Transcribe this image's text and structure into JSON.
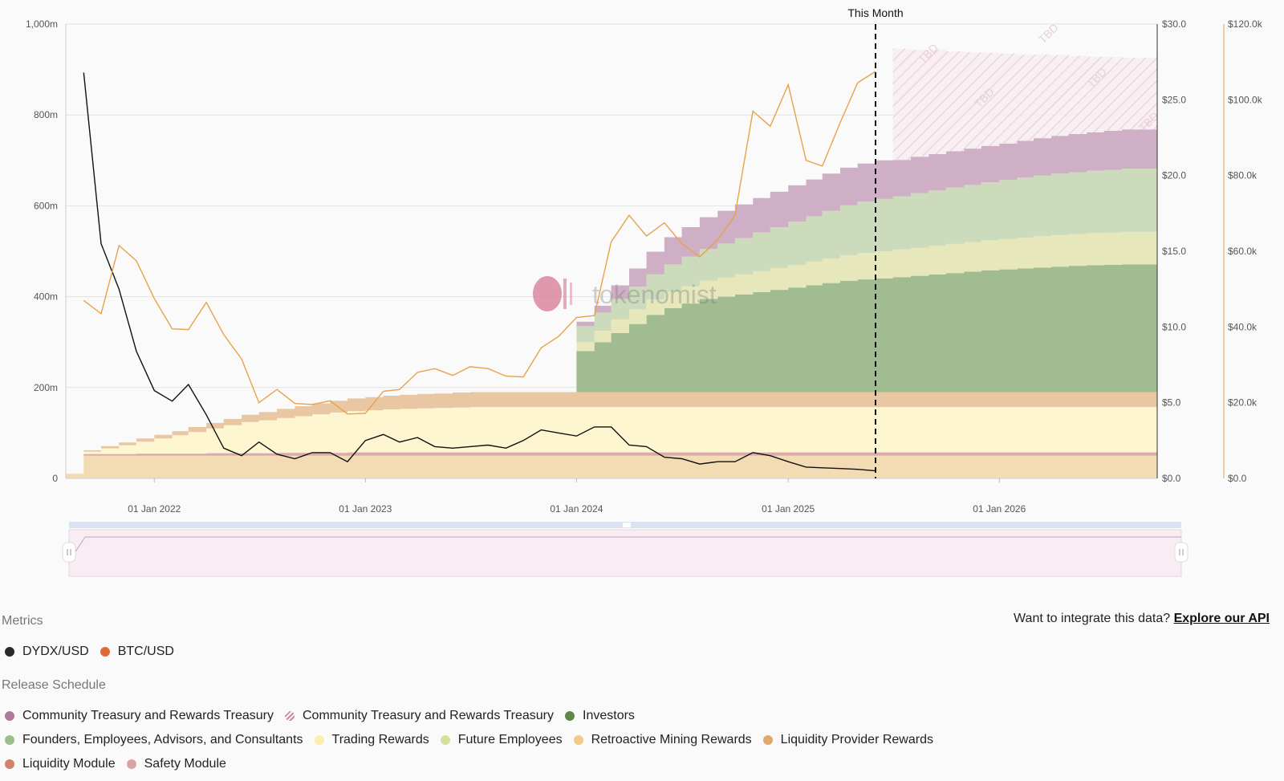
{
  "chart_data": {
    "type": "area",
    "xlim": [
      "2021-08-01",
      "2026-10-01"
    ],
    "x_ticks": [
      "01 Jan 2022",
      "01 Jan 2023",
      "01 Jan 2024",
      "01 Jan 2025",
      "01 Jan 2026"
    ],
    "marker": {
      "label": "This Month",
      "x": "2025-06-01"
    },
    "y_axes": {
      "supply": {
        "ylim": [
          0,
          1000
        ],
        "ticks": [
          "0",
          "200m",
          "400m",
          "600m",
          "800m",
          "1,000m"
        ]
      },
      "dydx_usd": {
        "ylim": [
          0,
          30
        ],
        "ticks": [
          "$0.0",
          "$5.0",
          "$10.0",
          "$15.0",
          "$20.0",
          "$25.0",
          "$30.0"
        ]
      },
      "btc_usd": {
        "ylim": [
          0,
          120000
        ],
        "ticks": [
          "$0.0",
          "$20.0k",
          "$40.0k",
          "$60.0k",
          "$80.0k",
          "$100.0k",
          "$120.0k"
        ]
      }
    },
    "stack_dates": [
      "2021-08-01",
      "2021-09-01",
      "2021-10-01",
      "2021-11-01",
      "2021-12-01",
      "2022-01-01",
      "2022-02-01",
      "2022-03-01",
      "2022-04-01",
      "2022-05-01",
      "2022-06-01",
      "2022-07-01",
      "2022-08-01",
      "2022-09-01",
      "2022-10-01",
      "2022-11-01",
      "2022-12-01",
      "2023-01-01",
      "2023-02-01",
      "2023-03-01",
      "2023-04-01",
      "2023-05-01",
      "2023-06-01",
      "2023-07-01",
      "2023-08-01",
      "2023-09-01",
      "2023-10-01",
      "2023-11-01",
      "2023-12-01",
      "2024-01-01",
      "2024-02-01",
      "2024-03-01",
      "2024-04-01",
      "2024-05-01",
      "2024-06-01",
      "2024-07-01",
      "2024-08-01",
      "2024-09-01",
      "2024-10-01",
      "2024-11-01",
      "2024-12-01",
      "2025-01-01",
      "2025-02-01",
      "2025-03-01",
      "2025-04-01",
      "2025-05-01",
      "2025-06-01",
      "2025-07-01",
      "2025-08-01",
      "2025-09-01",
      "2025-10-01",
      "2025-11-01",
      "2025-12-01",
      "2026-01-01",
      "2026-02-01",
      "2026-03-01",
      "2026-04-01",
      "2026-05-01",
      "2026-06-01",
      "2026-07-01",
      "2026-08-01",
      "2026-09-01"
    ],
    "series": [
      {
        "name": "Retroactive Mining Rewards",
        "color": "#f2d9b0",
        "values": [
          10,
          50,
          50,
          50,
          50,
          50,
          50,
          50,
          50,
          50,
          50,
          50,
          50,
          50,
          50,
          50,
          50,
          50,
          50,
          50,
          50,
          50,
          50,
          50,
          50,
          50,
          50,
          50,
          50,
          50,
          50,
          50,
          50,
          50,
          50,
          50,
          50,
          50,
          50,
          50,
          50,
          50,
          50,
          50,
          50,
          50,
          50,
          50,
          50,
          50,
          50,
          50,
          50,
          50,
          50,
          50,
          50,
          50,
          50,
          50,
          50,
          50
        ]
      },
      {
        "name": "Liquidity Module",
        "color": "#d9a6a6",
        "values": [
          0,
          3,
          3,
          3,
          4,
          4,
          4,
          4,
          5,
          5,
          5,
          5,
          6,
          6,
          6,
          6,
          7,
          7,
          7,
          7,
          7,
          7,
          7,
          7,
          7,
          7,
          7,
          7,
          7,
          7,
          7,
          7,
          7,
          7,
          7,
          7,
          7,
          7,
          7,
          7,
          7,
          7,
          7,
          7,
          7,
          7,
          7,
          7,
          7,
          7,
          7,
          7,
          7,
          7,
          7,
          7,
          7,
          7,
          7,
          7,
          7,
          7
        ]
      },
      {
        "name": "Safety Module",
        "color": "#e8c4c4",
        "values": [
          0,
          1,
          1,
          1,
          1,
          1,
          1,
          1,
          1,
          1,
          1,
          1,
          1,
          1,
          1,
          1,
          1,
          1,
          1,
          1,
          1,
          1,
          1,
          1,
          1,
          1,
          1,
          1,
          1,
          1,
          1,
          1,
          1,
          1,
          1,
          1,
          1,
          1,
          1,
          1,
          1,
          1,
          1,
          1,
          1,
          1,
          1,
          1,
          1,
          1,
          1,
          1,
          1,
          1,
          1,
          1,
          1,
          1,
          1,
          1,
          1,
          1
        ]
      },
      {
        "name": "Trading Rewards",
        "color": "#fdf6cf",
        "values": [
          0,
          5,
          12,
          19,
          26,
          33,
          40,
          47,
          54,
          61,
          68,
          72,
          76,
          80,
          84,
          88,
          90,
          92,
          94,
          95,
          96,
          97,
          98,
          99,
          99,
          99,
          99,
          99,
          99,
          99,
          99,
          99,
          99,
          99,
          99,
          99,
          99,
          99,
          99,
          99,
          99,
          99,
          99,
          99,
          99,
          99,
          99,
          99,
          99,
          99,
          99,
          99,
          99,
          99,
          99,
          99,
          99,
          99,
          99,
          99,
          99,
          99
        ]
      },
      {
        "name": "Liquidity Provider Rewards",
        "color": "#e9c49e",
        "values": [
          0,
          3,
          5,
          6,
          7,
          8,
          9,
          11,
          12,
          14,
          16,
          18,
          20,
          22,
          24,
          26,
          28,
          29,
          30,
          31,
          32,
          32,
          33,
          33,
          33,
          33,
          33,
          33,
          33,
          33,
          33,
          33,
          33,
          33,
          33,
          33,
          33,
          33,
          33,
          33,
          33,
          33,
          33,
          33,
          33,
          33,
          33,
          33,
          33,
          33,
          33,
          33,
          33,
          33,
          33,
          33,
          33,
          33,
          33,
          33,
          33,
          33
        ]
      },
      {
        "name": "Investors",
        "color": "#9cb88a",
        "values": [
          0,
          0,
          0,
          0,
          0,
          0,
          0,
          0,
          0,
          0,
          0,
          0,
          0,
          0,
          0,
          0,
          0,
          0,
          0,
          0,
          0,
          0,
          0,
          0,
          0,
          0,
          0,
          0,
          0,
          90,
          110,
          130,
          150,
          170,
          185,
          195,
          205,
          210,
          215,
          220,
          225,
          230,
          235,
          240,
          245,
          248,
          250,
          253,
          256,
          259,
          262,
          265,
          268,
          270,
          272,
          274,
          276,
          278,
          279,
          280,
          281,
          281
        ]
      },
      {
        "name": "Future Employees",
        "color": "#e6e6b8",
        "values": [
          0,
          0,
          0,
          0,
          0,
          0,
          0,
          0,
          0,
          0,
          0,
          0,
          0,
          0,
          0,
          0,
          0,
          0,
          0,
          0,
          0,
          0,
          0,
          0,
          0,
          0,
          0,
          0,
          0,
          20,
          25,
          30,
          32,
          34,
          36,
          38,
          40,
          42,
          44,
          46,
          48,
          50,
          52,
          54,
          56,
          58,
          60,
          61,
          62,
          63,
          64,
          65,
          66,
          67,
          68,
          69,
          70,
          70,
          71,
          71,
          72,
          72
        ]
      },
      {
        "name": "Founders, Employees, Advisors, and Consultants",
        "color": "#c8d9b8",
        "values": [
          0,
          0,
          0,
          0,
          0,
          0,
          0,
          0,
          0,
          0,
          0,
          0,
          0,
          0,
          0,
          0,
          0,
          0,
          0,
          0,
          0,
          0,
          0,
          0,
          0,
          0,
          0,
          0,
          0,
          35,
          40,
          45,
          50,
          55,
          60,
          65,
          70,
          75,
          80,
          85,
          90,
          95,
          100,
          105,
          110,
          113,
          115,
          117,
          120,
          122,
          124,
          126,
          128,
          130,
          132,
          134,
          135,
          136,
          137,
          138,
          139,
          139
        ]
      },
      {
        "name": "Community Treasury and Rewards Treasury",
        "color": "#ccabc3",
        "values": [
          0,
          0,
          0,
          0,
          0,
          0,
          0,
          0,
          0,
          0,
          0,
          0,
          0,
          0,
          0,
          0,
          0,
          0,
          0,
          0,
          0,
          0,
          0,
          0,
          0,
          0,
          0,
          0,
          0,
          10,
          15,
          30,
          40,
          50,
          60,
          65,
          70,
          72,
          74,
          76,
          78,
          80,
          81,
          82,
          83,
          84,
          85,
          80,
          80,
          80,
          80,
          80,
          80,
          80,
          81,
          82,
          83,
          84,
          85,
          86,
          86,
          86
        ]
      },
      {
        "name": "Community Treasury and Rewards Treasury",
        "color": "#f7ebf0",
        "hatched": true,
        "values": [
          0,
          0,
          0,
          0,
          0,
          0,
          0,
          0,
          0,
          0,
          0,
          0,
          0,
          0,
          0,
          0,
          0,
          0,
          0,
          0,
          0,
          0,
          0,
          0,
          0,
          0,
          0,
          0,
          0,
          0,
          0,
          0,
          0,
          0,
          0,
          0,
          0,
          0,
          0,
          0,
          0,
          0,
          0,
          0,
          0,
          0,
          0,
          245,
          235,
          230,
          220,
          212,
          205,
          198,
          190,
          184,
          178,
          172,
          166,
          162,
          158,
          158
        ]
      }
    ],
    "price_dates": [
      "2021-09-01",
      "2021-10-01",
      "2021-11-01",
      "2021-12-01",
      "2022-01-01",
      "2022-02-01",
      "2022-03-01",
      "2022-04-01",
      "2022-05-01",
      "2022-06-01",
      "2022-07-01",
      "2022-08-01",
      "2022-09-01",
      "2022-10-01",
      "2022-11-01",
      "2022-12-01",
      "2023-01-01",
      "2023-02-01",
      "2023-03-01",
      "2023-04-01",
      "2023-05-01",
      "2023-06-01",
      "2023-07-01",
      "2023-08-01",
      "2023-09-01",
      "2023-10-01",
      "2023-11-01",
      "2023-12-01",
      "2024-01-01",
      "2024-02-01",
      "2024-03-01",
      "2024-04-01",
      "2024-05-01",
      "2024-06-01",
      "2024-07-01",
      "2024-08-01",
      "2024-09-01",
      "2024-10-01",
      "2024-11-01",
      "2024-12-01",
      "2025-01-01",
      "2025-02-01",
      "2025-03-01",
      "2025-04-01",
      "2025-05-01",
      "2025-06-01"
    ],
    "price_series": [
      {
        "name": "DYDX/USD",
        "axis": "dydx_usd",
        "color": "#111111",
        "values": [
          26.8,
          15.5,
          12.5,
          8.4,
          5.8,
          5.1,
          6.2,
          4.2,
          2.0,
          1.5,
          2.4,
          1.6,
          1.3,
          1.7,
          1.7,
          1.1,
          2.5,
          2.9,
          2.4,
          2.7,
          2.1,
          2.0,
          2.1,
          2.2,
          2.0,
          2.5,
          3.2,
          3.0,
          2.8,
          3.4,
          3.4,
          2.2,
          2.1,
          1.4,
          1.3,
          0.95,
          1.1,
          1.1,
          1.7,
          1.5,
          1.1,
          0.75,
          0.7,
          0.65,
          0.6,
          0.5
        ]
      },
      {
        "name": "BTC/USD",
        "axis": "btc_usd",
        "color": "#e8a24a",
        "values": [
          47000,
          43500,
          61500,
          57500,
          47500,
          39500,
          39300,
          46500,
          38000,
          31500,
          20000,
          23500,
          19800,
          19500,
          20500,
          17000,
          17200,
          23000,
          23500,
          28000,
          29000,
          27200,
          29500,
          29000,
          27000,
          26800,
          34500,
          37500,
          42500,
          43000,
          62500,
          69500,
          64000,
          67500,
          62000,
          58500,
          63000,
          69500,
          97000,
          93000,
          104000,
          84000,
          82500,
          94000,
          104500,
          107500
        ]
      }
    ]
  },
  "watermark": "tokenomist",
  "tbd_label": "TBD",
  "metrics": {
    "title": "Metrics",
    "items": [
      {
        "label": "DYDX/USD",
        "color": "#2b2b2b"
      },
      {
        "label": "BTC/USD",
        "color": "#dd6b3a"
      }
    ]
  },
  "release": {
    "title": "Release Schedule",
    "rows": [
      [
        {
          "label": "Community Treasury and Rewards Treasury",
          "color": "#b07a9b",
          "icon": "dot"
        },
        {
          "label": "Community Treasury and Rewards Treasury",
          "color": "#c98a9e",
          "icon": "hatch"
        },
        {
          "label": "Investors",
          "color": "#5f8a45",
          "icon": "dot"
        }
      ],
      [
        {
          "label": "Founders, Employees, Advisors, and Consultants",
          "color": "#9cc08a",
          "icon": "dot"
        },
        {
          "label": "Trading Rewards",
          "color": "#fbefad",
          "icon": "dot"
        },
        {
          "label": "Future Employees",
          "color": "#d4e09c",
          "icon": "dot"
        },
        {
          "label": "Retroactive Mining Rewards",
          "color": "#f0cc8c",
          "icon": "dot"
        },
        {
          "label": "Liquidity Provider Rewards",
          "color": "#e0a870",
          "icon": "dot"
        }
      ],
      [
        {
          "label": "Liquidity Module",
          "color": "#d3826b",
          "icon": "dot"
        },
        {
          "label": "Safety Module",
          "color": "#d9a3a3",
          "icon": "dot"
        }
      ]
    ]
  },
  "api": {
    "prompt": "Want to integrate this data?",
    "link": "Explore our API"
  }
}
